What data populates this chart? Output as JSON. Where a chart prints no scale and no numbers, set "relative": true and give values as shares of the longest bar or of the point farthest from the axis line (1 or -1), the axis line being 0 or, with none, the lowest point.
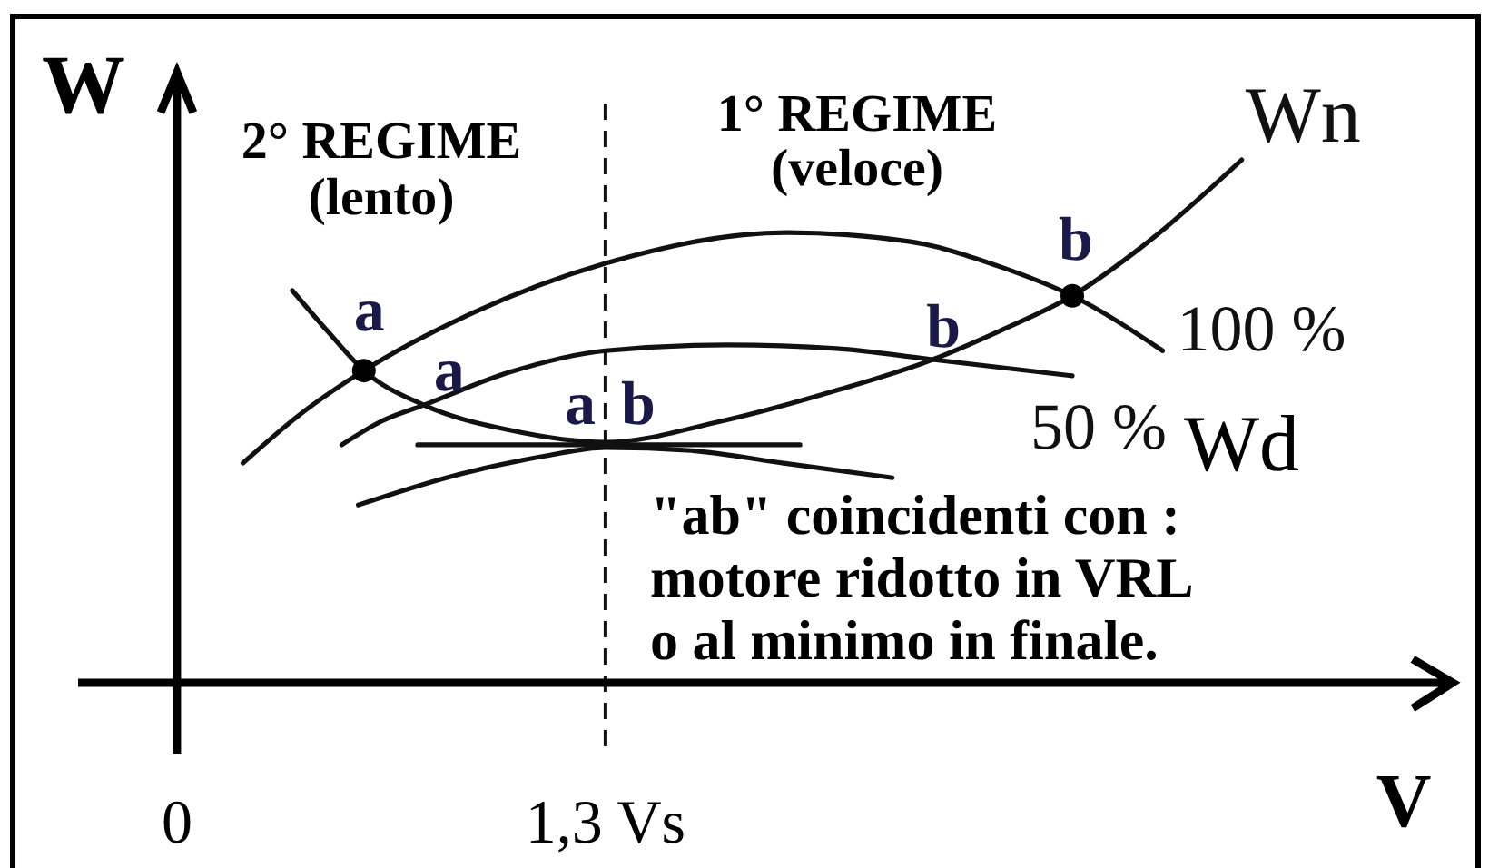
{
  "chart_data": {
    "type": "line",
    "relative": true,
    "xlabel": "V",
    "ylabel": "W",
    "xlim": [
      -0.3,
      3.87
    ],
    "xticks": [
      0,
      {
        "value": 1.3,
        "label": "1,3 Vs"
      }
    ],
    "ref_lines": [
      {
        "axis": "x",
        "value": 1.3,
        "line_style": "dashed",
        "color": "#111111"
      }
    ],
    "series": [
      {
        "name": "Wn",
        "color": "#111111",
        "x": [
          0.35,
          0.46,
          0.567,
          0.749,
          1.01,
          1.3,
          1.65,
          2.0,
          2.292,
          2.5,
          2.716,
          2.94,
          3.23
        ],
        "values": [
          0.75,
          0.67,
          0.597,
          0.531,
          0.483,
          0.46,
          0.5,
          0.559,
          0.618,
          0.674,
          0.74,
          0.84,
          1
        ]
      },
      {
        "name": "100 %",
        "color": "#111111",
        "x": [
          0.2,
          0.375,
          0.567,
          0.9,
          1.3,
          1.85,
          2.22,
          2.5,
          2.716,
          2.99
        ],
        "values": [
          0.42,
          0.514,
          0.597,
          0.708,
          0.802,
          0.861,
          0.844,
          0.795,
          0.74,
          0.635
        ]
      },
      {
        "name": "50 %",
        "color": "#111111",
        "x": [
          0.5,
          0.62,
          0.749,
          1.01,
          1.3,
          1.67,
          2.0,
          2.292,
          2.716
        ],
        "values": [
          0.455,
          0.5,
          0.531,
          0.594,
          0.635,
          0.646,
          0.639,
          0.618,
          0.587
        ]
      },
      {
        "color": "#111111",
        "x": [
          0.73,
          1.89
        ],
        "values": [
          0.455,
          0.455
        ]
      },
      {
        "color": "#111111",
        "x": [
          0.55,
          0.84,
          1.12,
          1.3,
          1.56,
          1.84,
          2.17
        ],
        "values": [
          0.34,
          0.396,
          0.434,
          0.45,
          0.444,
          0.42,
          0.392
        ]
      },
      {
        "type": "scatter",
        "marker": "circle",
        "color": "#000000",
        "x": [
          0.567,
          2.716
        ],
        "values": [
          0.597,
          0.74
        ]
      }
    ],
    "annotations": [
      "2° REGIME\n(lento)",
      "1° REGIME\n(veloce)",
      "Wd",
      "\"ab\" coincidenti con :\nmotore ridotto in VRL\no al minimo in finale.",
      {
        "text": "a",
        "x": 0.567,
        "y": 0.597
      },
      {
        "text": "a",
        "x": 0.749,
        "y": 0.531
      },
      {
        "text": "a",
        "x": 1.3,
        "y": 0.46
      },
      {
        "text": "b",
        "x": 1.3,
        "y": 0.46
      },
      {
        "text": "b",
        "x": 2.292,
        "y": 0.618
      },
      {
        "text": "b",
        "x": 2.716,
        "y": 0.74
      }
    ]
  }
}
